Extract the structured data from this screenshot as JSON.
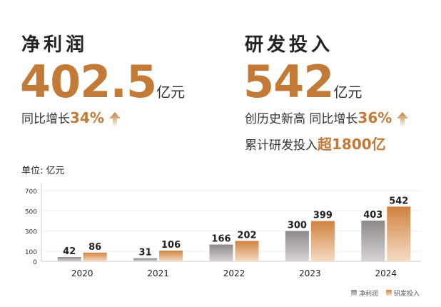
{
  "profit": {
    "title": "净利润",
    "value": "402.5",
    "unit": "亿元",
    "growth_prefix": "同比增长",
    "growth": "34%"
  },
  "rnd": {
    "title": "研发投入",
    "value": "542",
    "unit": "亿元",
    "line1_prefix": "创历史新高 同比增长",
    "growth": "36%",
    "line2_prefix": "累计研发投入",
    "line2_highlight": "超1800亿"
  },
  "colors": {
    "accent": "#c47a37",
    "profit_bar": "#9a9494",
    "rnd_bar": "#d68c48"
  },
  "chart_data": {
    "type": "bar",
    "unit_label": "单位: 亿元",
    "categories": [
      "2020",
      "2021",
      "2022",
      "2023",
      "2024"
    ],
    "series": [
      {
        "name": "净利润",
        "values": [
          42,
          31,
          166,
          300,
          403
        ]
      },
      {
        "name": "研发投入",
        "values": [
          86,
          106,
          202,
          399,
          542
        ]
      }
    ],
    "yticks": [
      0,
      100,
      300,
      500,
      700
    ],
    "ylim": [
      0,
      700
    ],
    "grid": true,
    "legend": "bottom-right"
  }
}
